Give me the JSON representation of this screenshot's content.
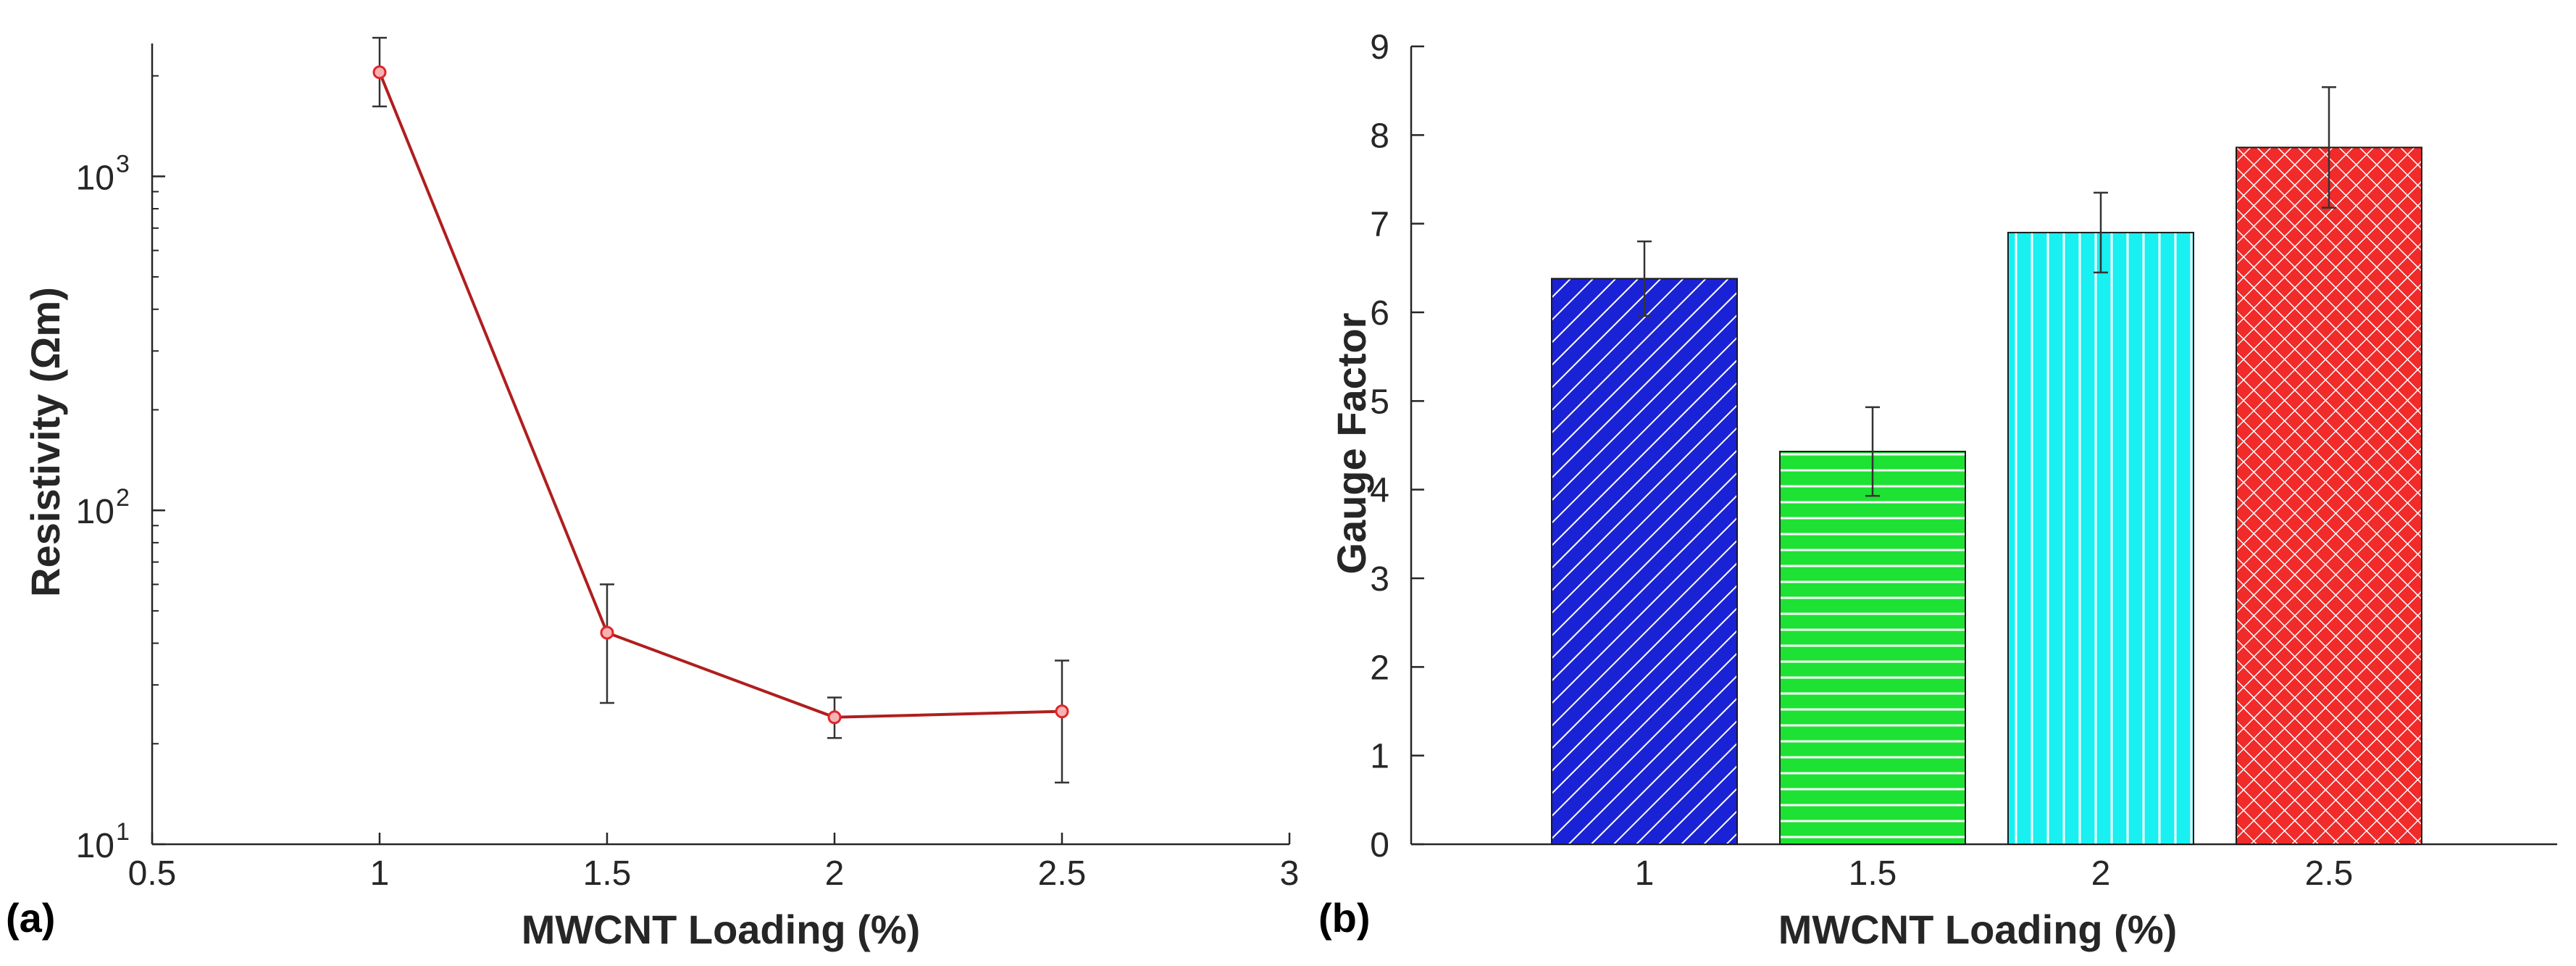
{
  "chart_data": [
    {
      "type": "line",
      "panel_label": "(a)",
      "xlabel": "MWCNT Loading (%)",
      "ylabel": "Resistivity (Ωm)",
      "yscale": "log",
      "xlim": [
        0.5,
        3
      ],
      "ylim": [
        10,
        2500
      ],
      "xticks": [
        "0.5",
        "1",
        "1.5",
        "2",
        "2.5",
        "3"
      ],
      "yticks": [
        {
          "value": 10,
          "base": "10",
          "exp": "1"
        },
        {
          "value": 100,
          "base": "10",
          "exp": "2"
        },
        {
          "value": 1000,
          "base": "10",
          "exp": "3"
        }
      ],
      "x": [
        1,
        1.5,
        2,
        2.5
      ],
      "y": [
        2050,
        43,
        24,
        25
      ],
      "err_low": [
        1620,
        26.5,
        20.8,
        15.3
      ],
      "err_high": [
        2600,
        60,
        27.5,
        35.5
      ],
      "line_color": "#b01e1e",
      "marker_color": "#e0252a",
      "grid": false
    },
    {
      "type": "bar",
      "panel_label": "(b)",
      "xlabel": "MWCNT Loading (%)",
      "ylabel": "Gauge Factor",
      "categories": [
        "1",
        "1.5",
        "2",
        "2.5"
      ],
      "values": [
        6.38,
        4.43,
        6.9,
        7.86
      ],
      "errors": [
        0.42,
        0.5,
        0.45,
        0.68
      ],
      "colors": [
        "#1a22d6",
        "#1de233",
        "#18f0f2",
        "#f12a2a"
      ],
      "patterns": [
        "diagonal",
        "horizontal",
        "vertical",
        "crosshatch"
      ],
      "yticks": [
        "0",
        "1",
        "2",
        "3",
        "4",
        "5",
        "6",
        "7",
        "8",
        "9"
      ],
      "ylim": [
        0,
        9
      ],
      "grid": false
    }
  ]
}
